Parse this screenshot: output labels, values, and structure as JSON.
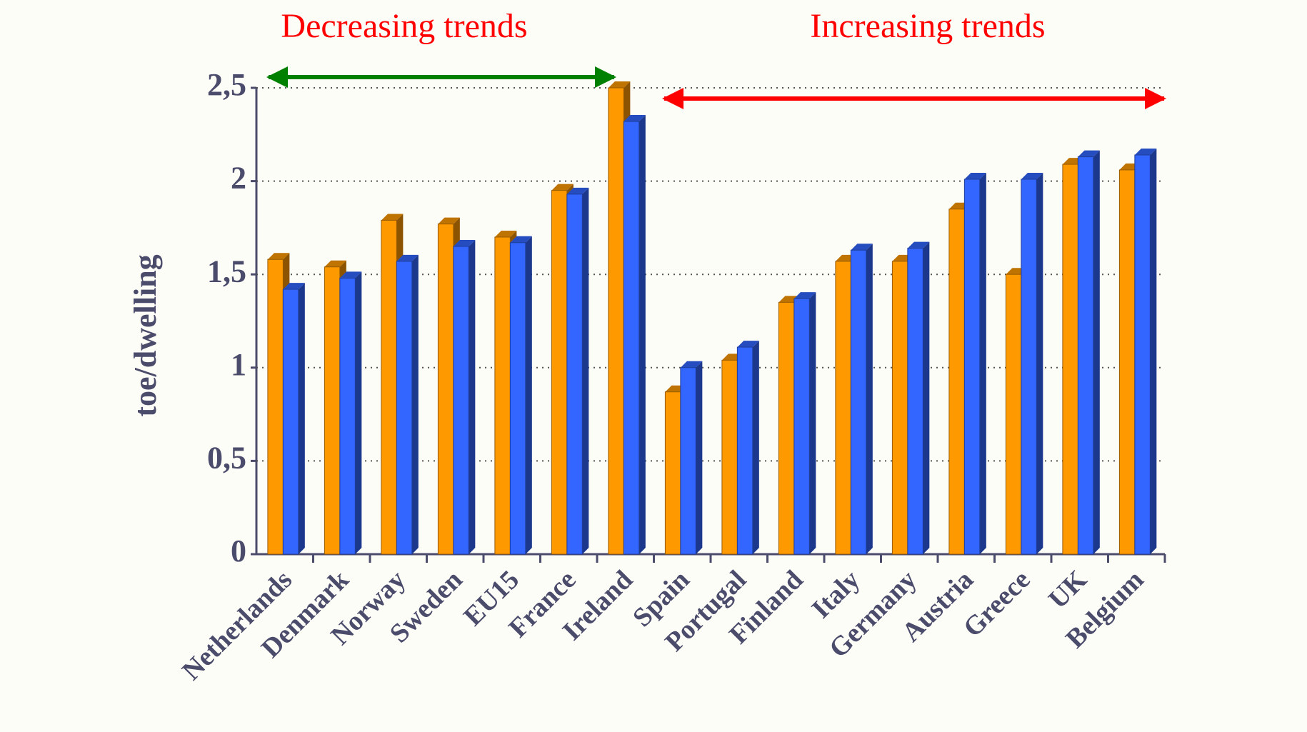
{
  "chart_data": {
    "type": "bar",
    "annotations": [
      "Decreasing trends",
      "Increasing trends"
    ],
    "y_label": "toe/dwelling",
    "categories": [
      "Netherlands",
      "Denmark",
      "Norway",
      "Sweden",
      "EU15",
      "France",
      "Ireland",
      "Spain",
      "Portugal",
      "Finland",
      "Italy",
      "Germany",
      "Austria",
      "Greece",
      "UK",
      "Belgium"
    ],
    "series": [
      {
        "color": "#ff9900",
        "values": [
          1.58,
          1.54,
          1.79,
          1.77,
          1.7,
          1.95,
          2.5,
          0.87,
          1.04,
          1.35,
          1.57,
          1.57,
          1.85,
          1.5,
          2.09,
          2.06
        ]
      },
      {
        "color": "#3366ff",
        "values": [
          1.42,
          1.48,
          1.57,
          1.65,
          1.67,
          1.93,
          2.32,
          1.0,
          1.11,
          1.37,
          1.63,
          1.64,
          2.01,
          2.01,
          2.13,
          2.14
        ]
      }
    ],
    "ylim": [
      0,
      2.5
    ],
    "yticks": [
      0,
      {
        "value": 0.5,
        "label": "0,5"
      },
      1,
      {
        "value": 1.5,
        "label": "1,5"
      },
      2,
      {
        "value": 2.5,
        "label": "2,5"
      }
    ],
    "grid": true
  }
}
